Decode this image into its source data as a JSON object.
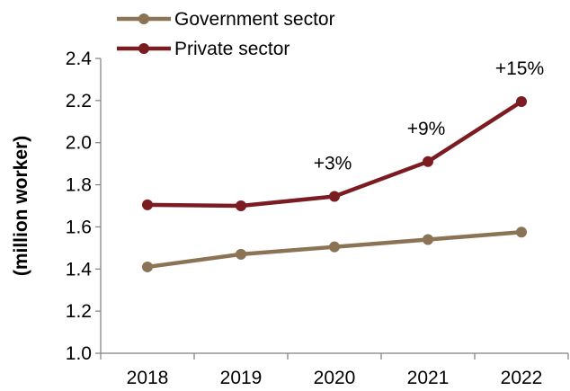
{
  "chart_data": {
    "type": "line",
    "categories": [
      "2018",
      "2019",
      "2020",
      "2021",
      "2022"
    ],
    "series": [
      {
        "name": "Government sector",
        "color": "#8b7355",
        "values": [
          1.41,
          1.47,
          1.505,
          1.54,
          1.575
        ]
      },
      {
        "name": "Private sector",
        "color": "#7b1c22",
        "values": [
          1.705,
          1.7,
          1.745,
          1.91,
          2.195
        ]
      }
    ],
    "annotations": [
      {
        "series": "Private sector",
        "category": "2020",
        "text": "+3%"
      },
      {
        "series": "Private sector",
        "category": "2021",
        "text": "+9%"
      },
      {
        "series": "Private sector",
        "category": "2022",
        "text": "+15%"
      }
    ],
    "ylabel": "(million worker)",
    "xlabel": "",
    "ylim": [
      1.0,
      2.4
    ],
    "yticks": [
      "1.0",
      "1.2",
      "1.4",
      "1.6",
      "1.8",
      "2.0",
      "2.2",
      "2.4"
    ],
    "grid": false,
    "legend_position": "top-left"
  }
}
